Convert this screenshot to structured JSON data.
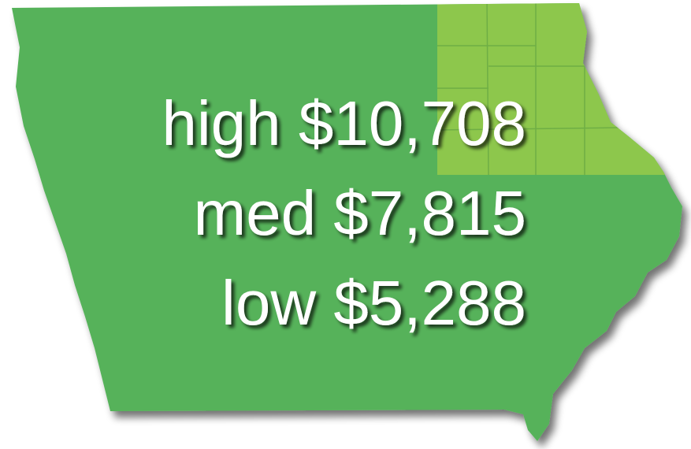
{
  "lines": [
    "high $10,708",
    "med $7,815",
    "low $5,288"
  ]
}
